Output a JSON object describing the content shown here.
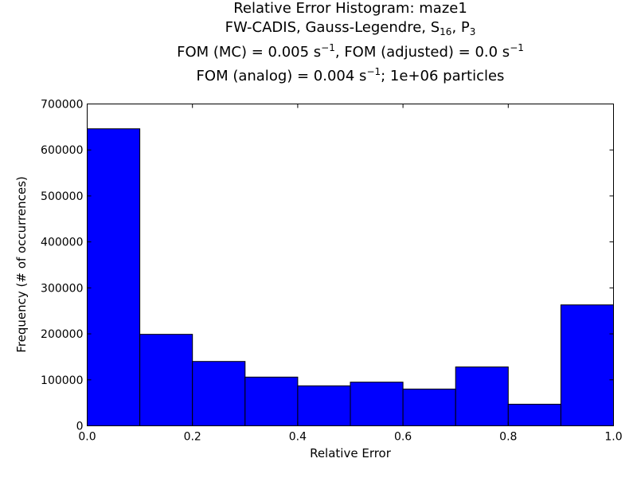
{
  "chart_data": {
    "type": "bar",
    "title": {
      "line1": "Relative Error Histogram: maze1",
      "line2": {
        "prefix": "FW-CADIS, Gauss-Legendre, S",
        "s_sub": "16",
        "mid": ", P",
        "p_sub": "3"
      },
      "line3": {
        "a": "FOM (MC) = 0.005 s",
        "a_sup": "−1",
        "b": ", FOM (adjusted) = 0.0 s",
        "b_sup": "−1"
      },
      "line4": {
        "a": "FOM (analog) = 0.004 s",
        "a_sup": "−1",
        "b": ";  1e+06 particles"
      }
    },
    "xlabel": "Relative Error",
    "ylabel": "Frequency (# of occurrences)",
    "xlim": [
      0.0,
      1.0
    ],
    "ylim": [
      0,
      700000
    ],
    "xticks": [
      "0.0",
      "0.2",
      "0.4",
      "0.6",
      "0.8",
      "1.0"
    ],
    "yticks": [
      "0",
      "100000",
      "200000",
      "300000",
      "400000",
      "500000",
      "600000",
      "700000"
    ],
    "bin_edges": [
      0.0,
      0.1,
      0.2,
      0.3,
      0.4,
      0.5,
      0.6,
      0.7,
      0.8,
      0.9,
      1.0
    ],
    "values": [
      646000,
      199000,
      140000,
      106000,
      87000,
      95000,
      80000,
      128000,
      47000,
      263000
    ],
    "bar_color": "#0000ff",
    "grid": false
  }
}
